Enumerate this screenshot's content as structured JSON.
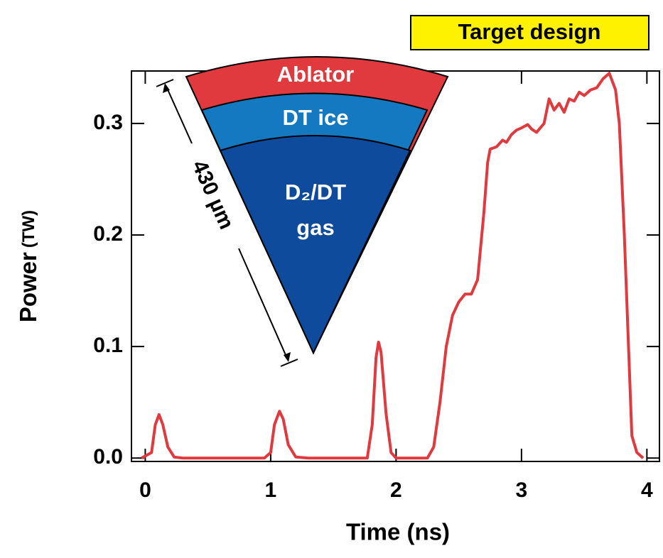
{
  "chart_data": {
    "type": "line",
    "x_label": "Time (ns)",
    "y_label": "Power",
    "y_unit": "(TW)",
    "annotations": {
      "badge": "Target design",
      "layer_1": "Ablator",
      "layer_2": "DT ice",
      "layer_3_line_1": "D₂/DT",
      "layer_3_line_2": "gas",
      "dimension": "430 µm"
    },
    "xlim": [
      -0.11,
      4.1
    ],
    "ylim": [
      -0.003,
      0.347
    ],
    "xticks": [
      0,
      1,
      2,
      3,
      4
    ],
    "yticks": [
      {
        "value": 0,
        "label": "0.0"
      },
      0.1,
      0.2,
      0.3
    ],
    "grid": false,
    "series": [
      {
        "color": "#e0393e",
        "x": [
          -0.03,
          0.05,
          0.08,
          0.11,
          0.14,
          0.18,
          0.23,
          0.3,
          0.95,
          1.0,
          1.03,
          1.07,
          1.1,
          1.14,
          1.2,
          1.3,
          1.77,
          1.81,
          1.84,
          1.86,
          1.88,
          1.92,
          1.96,
          2.0,
          2.25,
          2.3,
          2.35,
          2.4,
          2.45,
          2.5,
          2.55,
          2.6,
          2.65,
          2.7,
          2.73,
          2.75,
          2.8,
          2.85,
          2.88,
          2.92,
          2.96,
          3.0,
          3.05,
          3.08,
          3.12,
          3.18,
          3.22,
          3.26,
          3.3,
          3.34,
          3.38,
          3.42,
          3.46,
          3.5,
          3.55,
          3.6,
          3.65,
          3.7,
          3.75,
          3.78,
          3.82,
          3.86,
          3.88,
          3.92,
          3.97
        ],
        "values": [
          0,
          0.005,
          0.03,
          0.039,
          0.03,
          0.01,
          0.001,
          0,
          0,
          0.005,
          0.03,
          0.042,
          0.035,
          0.012,
          0.001,
          0,
          0,
          0.03,
          0.09,
          0.104,
          0.095,
          0.04,
          0.005,
          0,
          0,
          0.01,
          0.05,
          0.1,
          0.128,
          0.14,
          0.147,
          0.147,
          0.16,
          0.22,
          0.265,
          0.277,
          0.279,
          0.285,
          0.283,
          0.29,
          0.294,
          0.296,
          0.299,
          0.295,
          0.292,
          0.3,
          0.322,
          0.312,
          0.318,
          0.31,
          0.322,
          0.32,
          0.328,
          0.325,
          0.33,
          0.332,
          0.34,
          0.345,
          0.33,
          0.3,
          0.2,
          0.08,
          0.02,
          0.005,
          0
        ]
      }
    ]
  }
}
